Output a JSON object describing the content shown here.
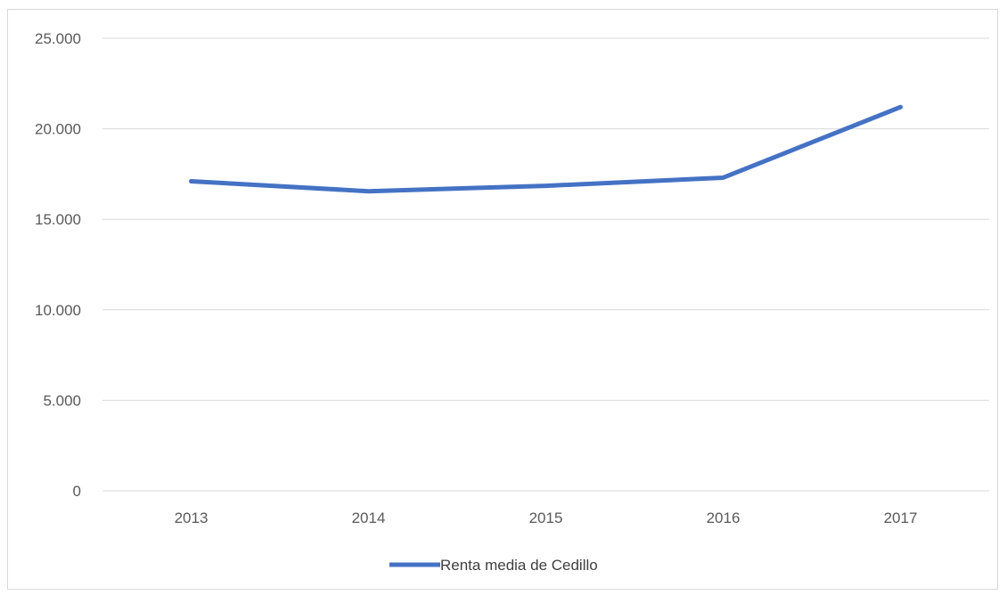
{
  "chart_data": {
    "type": "line",
    "title": "",
    "xlabel": "",
    "ylabel": "",
    "categories": [
      "2013",
      "2014",
      "2015",
      "2016",
      "2017"
    ],
    "series": [
      {
        "name": "Renta media de Cedillo",
        "values": [
          17100,
          16550,
          16850,
          17300,
          21200
        ],
        "color": "#4472c4"
      }
    ],
    "ylim": [
      0,
      25000
    ],
    "yticks": [
      0,
      5000,
      10000,
      15000,
      20000,
      25000
    ],
    "ytick_labels": [
      "0",
      "5.000",
      "10.000",
      "15.000",
      "20.000",
      "25.000"
    ],
    "grid": true,
    "gridline_color": "#d9d9d9",
    "legend_position": "bottom"
  }
}
